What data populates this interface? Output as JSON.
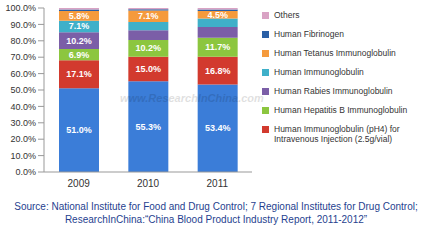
{
  "chart_data": {
    "type": "bar",
    "stacked": true,
    "data_labels": true,
    "grid": false,
    "legend": "right",
    "categories": [
      "2009",
      "2010",
      "2011"
    ],
    "ylim": [
      0,
      100
    ],
    "yticks": [
      {
        "value": 0,
        "label": "0.0%"
      },
      {
        "value": 10,
        "label": "10.0%"
      },
      {
        "value": 20,
        "label": "20.0%"
      },
      {
        "value": 30,
        "label": "30.0%"
      },
      {
        "value": 40,
        "label": "40.0%"
      },
      {
        "value": 50,
        "label": "50.0%"
      },
      {
        "value": 60,
        "label": "60.0%"
      },
      {
        "value": 70,
        "label": "70.0%"
      },
      {
        "value": 80,
        "label": "80.0%"
      },
      {
        "value": 90,
        "label": "90.0%"
      },
      {
        "value": 100,
        "label": "100.0%"
      }
    ],
    "series": [
      {
        "name": null,
        "color": "#3b7dd8",
        "values": [
          51.0,
          55.3,
          53.4
        ],
        "value_labels": [
          "51.0%",
          "55.3%",
          "53.4%"
        ]
      },
      {
        "name": "Human Immunoglobulin (pH4) for Intravenous Injection (2.5g/vial)",
        "color": "#d23a2e",
        "values": [
          17.1,
          15.0,
          16.8
        ],
        "value_labels": [
          "17.1%",
          "15.0%",
          "16.8%"
        ]
      },
      {
        "name": "Human Hepatitis B Immunoglobulin",
        "color": "#8cc63f",
        "values": [
          6.9,
          10.2,
          11.7
        ],
        "value_labels": [
          "6.9%",
          "10.2%",
          "11.7%"
        ]
      },
      {
        "name": "Human Rabies Immunoglobulin",
        "color": "#7b5ea7",
        "values": [
          10.2,
          6.0,
          6.5
        ],
        "value_labels": [
          "10.2%",
          null,
          null
        ]
      },
      {
        "name": "Human Immunoglobulin",
        "color": "#3fb0c9",
        "values": [
          7.1,
          4.9,
          5.2
        ],
        "value_labels": [
          "7.1%",
          null,
          null
        ]
      },
      {
        "name": "Human Tetanus Immunoglobulin",
        "color": "#f59a3c",
        "values": [
          5.8,
          7.1,
          4.5
        ],
        "value_labels": [
          "5.8%",
          "7.1%",
          "4.5%"
        ]
      },
      {
        "name": "Human Fibrinogen",
        "color": "#2a5fa5",
        "values": [
          1.0,
          0.8,
          1.0
        ],
        "value_labels": [
          null,
          null,
          null
        ]
      },
      {
        "name": "Others",
        "color": "#d9a3c4",
        "values": [
          0.9,
          0.7,
          0.9
        ],
        "value_labels": [
          null,
          null,
          null
        ]
      }
    ],
    "watermark": "www.ResearchInChina.com",
    "source": "Source: National Institute for Food and Drug Control; 7 Regional Institutes for Drug Control; ResearchInChina:“China Blood Product Industry Report, 2011-2012”"
  }
}
